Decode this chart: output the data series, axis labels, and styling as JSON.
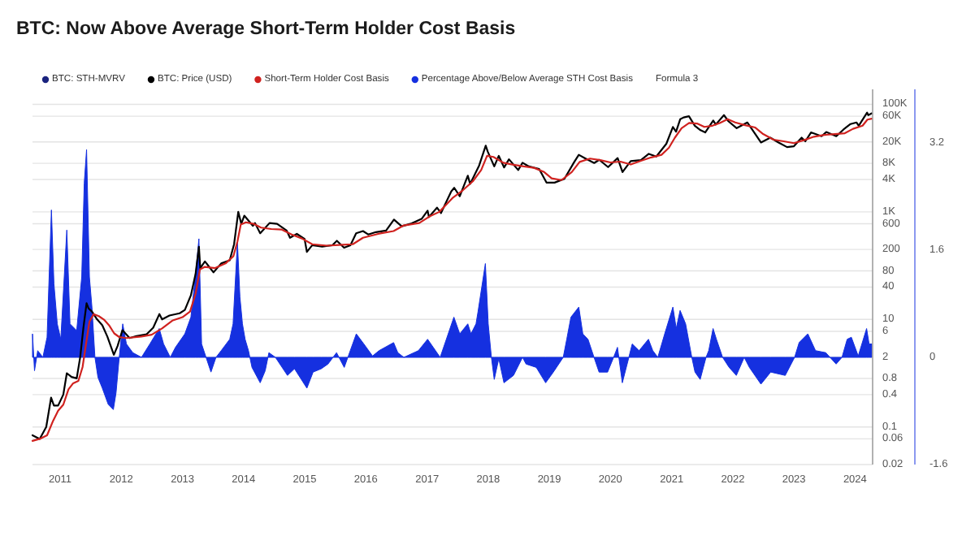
{
  "chart_data": {
    "type": "line",
    "title": "BTC: Now Above Average Short-Term Holder Cost Basis",
    "legend": "top left",
    "grid": "y",
    "log": "y",
    "xlim": [
      "2010-07-20",
      "2024-04-15"
    ],
    "xticks": [
      "2011",
      "2012",
      "2013",
      "2014",
      "2015",
      "2016",
      "2017",
      "2018",
      "2019",
      "2020",
      "2021",
      "2022",
      "2023",
      "2024"
    ],
    "ylim": [
      0.02,
      190000
    ],
    "yticks": [
      0.02,
      0.06,
      0.1,
      0.4,
      0.8,
      2,
      6,
      10,
      40,
      80,
      200,
      600,
      {
        "value": 1000,
        "label": "1K"
      },
      {
        "value": 4000,
        "label": "4K"
      },
      {
        "value": 8000,
        "label": "8K"
      },
      {
        "value": 20000,
        "label": "20K"
      },
      {
        "value": 60000,
        "label": "60K"
      },
      {
        "value": 100000,
        "label": "100K"
      }
    ],
    "y2lim": [
      -1.6,
      4.0
    ],
    "y2ticks": [
      -1.6,
      0,
      1.6,
      3.2
    ],
    "series": [
      {
        "name": "BTC: STH-MVRV",
        "color": "#1a237e"
      },
      {
        "name": "BTC: Price (USD)",
        "color": "#000000",
        "x": [
          "2010-07-20",
          "2010-09-01",
          "2010-10-10",
          "2010-11-08",
          "2010-11-25",
          "2010-12-20",
          "2011-01-20",
          "2011-02-10",
          "2011-03-10",
          "2011-04-10",
          "2011-05-01",
          "2011-05-20",
          "2011-06-08",
          "2011-06-20",
          "2011-07-10",
          "2011-08-10",
          "2011-09-10",
          "2011-10-10",
          "2011-11-18",
          "2011-12-10",
          "2012-01-08",
          "2012-02-20",
          "2012-04-01",
          "2012-06-01",
          "2012-07-10",
          "2012-08-16",
          "2012-09-01",
          "2012-10-15",
          "2012-12-15",
          "2013-01-15",
          "2013-02-20",
          "2013-03-20",
          "2013-04-09",
          "2013-04-17",
          "2013-05-15",
          "2013-07-05",
          "2013-08-20",
          "2013-10-10",
          "2013-11-05",
          "2013-11-30",
          "2013-12-18",
          "2014-01-05",
          "2014-02-25",
          "2014-03-10",
          "2014-04-10",
          "2014-06-05",
          "2014-07-20",
          "2014-09-15",
          "2014-10-05",
          "2014-11-15",
          "2014-12-31",
          "2015-01-14",
          "2015-02-15",
          "2015-04-15",
          "2015-06-15",
          "2015-07-12",
          "2015-08-24",
          "2015-10-01",
          "2015-11-04",
          "2015-12-15",
          "2016-01-15",
          "2016-03-01",
          "2016-05-01",
          "2016-06-17",
          "2016-08-02",
          "2016-10-01",
          "2016-12-01",
          "2017-01-04",
          "2017-01-12",
          "2017-03-01",
          "2017-03-25",
          "2017-05-25",
          "2017-06-12",
          "2017-07-15",
          "2017-09-01",
          "2017-09-15",
          "2017-11-08",
          "2017-12-17",
          "2017-12-30",
          "2018-02-06",
          "2018-03-05",
          "2018-04-06",
          "2018-05-05",
          "2018-06-29",
          "2018-07-25",
          "2018-09-01",
          "2018-11-01",
          "2018-12-15",
          "2019-02-01",
          "2019-04-01",
          "2019-05-30",
          "2019-06-26",
          "2019-08-01",
          "2019-09-26",
          "2019-10-26",
          "2019-12-18",
          "2020-02-13",
          "2020-03-13",
          "2020-05-01",
          "2020-07-01",
          "2020-08-17",
          "2020-10-01",
          "2020-11-30",
          "2021-01-08",
          "2021-01-27",
          "2021-02-21",
          "2021-03-13",
          "2021-04-14",
          "2021-05-19",
          "2021-06-22",
          "2021-07-20",
          "2021-09-06",
          "2021-09-21",
          "2021-11-09",
          "2021-12-04",
          "2022-01-24",
          "2022-03-29",
          "2022-05-12",
          "2022-06-18",
          "2022-08-13",
          "2022-10-01",
          "2022-11-21",
          "2023-01-01",
          "2023-02-16",
          "2023-03-10",
          "2023-04-13",
          "2023-06-15",
          "2023-07-13",
          "2023-09-11",
          "2023-10-24",
          "2023-12-05",
          "2024-01-10",
          "2024-01-23",
          "2024-03-13",
          "2024-03-20",
          "2024-04-10"
        ],
        "values": [
          0.07,
          0.06,
          0.1,
          0.35,
          0.25,
          0.25,
          0.4,
          1.0,
          0.85,
          0.8,
          2,
          7,
          20,
          16,
          14,
          10,
          7.8,
          4.8,
          2.2,
          3.2,
          6.3,
          4.5,
          4.9,
          5.3,
          7,
          12.6,
          10,
          11.8,
          13,
          15,
          28,
          70,
          224,
          90,
          120,
          75,
          110,
          126,
          250,
          1000,
          600,
          850,
          550,
          620,
          400,
          620,
          600,
          450,
          330,
          390,
          315,
          180,
          240,
          225,
          240,
          290,
          215,
          240,
          400,
          440,
          380,
          420,
          450,
          720,
          540,
          610,
          750,
          1050,
          800,
          1200,
          950,
          2400,
          2800,
          1950,
          4700,
          3300,
          7300,
          17000,
          13000,
          7000,
          11000,
          6700,
          9500,
          6000,
          8200,
          7000,
          6300,
          3500,
          3500,
          4100,
          8500,
          11500,
          10000,
          8100,
          9300,
          6800,
          10000,
          5500,
          8800,
          9200,
          12000,
          10700,
          18500,
          38000,
          31000,
          53000,
          57000,
          60000,
          40000,
          33000,
          30000,
          50000,
          42000,
          63000,
          49000,
          36000,
          46000,
          29000,
          19500,
          24000,
          19500,
          16000,
          16600,
          24000,
          20500,
          30000,
          25500,
          30500,
          25500,
          34000,
          43000,
          46000,
          40000,
          70000,
          63000,
          68000
        ]
      },
      {
        "name": "Short-Term Holder Cost Basis",
        "color": "#d0221f",
        "x": [
          "2010-07-20",
          "2010-09-01",
          "2010-10-15",
          "2010-11-20",
          "2010-12-20",
          "2011-01-20",
          "2011-02-20",
          "2011-03-20",
          "2011-04-20",
          "2011-05-15",
          "2011-06-10",
          "2011-06-25",
          "2011-07-20",
          "2011-08-20",
          "2011-09-20",
          "2011-10-20",
          "2011-11-20",
          "2011-12-20",
          "2012-02-01",
          "2012-05-01",
          "2012-07-01",
          "2012-09-01",
          "2012-11-01",
          "2013-01-01",
          "2013-02-15",
          "2013-03-20",
          "2013-04-15",
          "2013-05-15",
          "2013-07-15",
          "2013-09-15",
          "2013-11-01",
          "2013-11-25",
          "2013-12-15",
          "2014-01-15",
          "2014-03-01",
          "2014-04-15",
          "2014-06-15",
          "2014-08-15",
          "2014-10-15",
          "2014-12-15",
          "2015-02-15",
          "2015-05-15",
          "2015-08-15",
          "2015-10-15",
          "2015-12-15",
          "2016-03-15",
          "2016-06-15",
          "2016-08-15",
          "2016-11-15",
          "2017-01-15",
          "2017-03-15",
          "2017-06-01",
          "2017-08-01",
          "2017-10-01",
          "2017-11-20",
          "2017-12-25",
          "2018-02-01",
          "2018-04-01",
          "2018-06-01",
          "2018-08-01",
          "2018-10-01",
          "2018-12-01",
          "2019-01-15",
          "2019-03-15",
          "2019-05-15",
          "2019-07-01",
          "2019-09-01",
          "2019-11-01",
          "2020-01-01",
          "2020-03-01",
          "2020-05-01",
          "2020-07-01",
          "2020-09-01",
          "2020-11-01",
          "2020-12-15",
          "2021-01-20",
          "2021-03-01",
          "2021-04-15",
          "2021-06-01",
          "2021-07-15",
          "2021-09-01",
          "2021-10-15",
          "2021-12-01",
          "2022-01-15",
          "2022-03-15",
          "2022-05-15",
          "2022-07-01",
          "2022-09-01",
          "2022-11-01",
          "2023-01-01",
          "2023-03-01",
          "2023-05-01",
          "2023-07-01",
          "2023-09-01",
          "2023-11-01",
          "2023-12-20",
          "2024-02-15",
          "2024-03-15",
          "2024-04-10"
        ],
        "values": [
          0.055,
          0.06,
          0.07,
          0.13,
          0.2,
          0.26,
          0.5,
          0.65,
          0.72,
          1.3,
          4.5,
          9,
          12.5,
          11.5,
          9.9,
          7.8,
          5.5,
          4.7,
          4.5,
          4.8,
          5.2,
          6.8,
          9.5,
          11,
          14,
          30,
          85,
          95,
          90,
          110,
          150,
          280,
          580,
          640,
          600,
          510,
          480,
          470,
          380,
          320,
          250,
          235,
          245,
          250,
          330,
          390,
          440,
          560,
          620,
          820,
          1000,
          1800,
          2500,
          3700,
          6000,
          11000,
          10500,
          8200,
          7500,
          7000,
          6600,
          5500,
          4200,
          3900,
          5500,
          8500,
          9800,
          9200,
          8300,
          8600,
          7600,
          8900,
          10300,
          11500,
          15500,
          24000,
          36000,
          45000,
          44000,
          38000,
          40000,
          45000,
          53000,
          46000,
          41000,
          37000,
          28000,
          22000,
          20500,
          19000,
          21500,
          25000,
          27000,
          28000,
          29000,
          35000,
          40000,
          52000,
          54000
        ]
      },
      {
        "name": "Percentage Above/Below Average STH Cost Basis",
        "type": "area",
        "axis": "y2",
        "color": "#1530e0",
        "x": [
          "2010-07-20",
          "2010-08-01",
          "2010-08-20",
          "2010-09-20",
          "2010-10-15",
          "2010-11-10",
          "2010-11-25",
          "2010-12-15",
          "2011-01-05",
          "2011-02-10",
          "2011-03-01",
          "2011-04-10",
          "2011-05-10",
          "2011-05-25",
          "2011-06-08",
          "2011-06-25",
          "2011-07-10",
          "2011-07-28",
          "2011-08-15",
          "2011-09-10",
          "2011-10-15",
          "2011-11-15",
          "2011-12-01",
          "2011-12-20",
          "2012-01-10",
          "2012-02-01",
          "2012-03-10",
          "2012-05-01",
          "2012-06-20",
          "2012-08-15",
          "2012-09-10",
          "2012-10-20",
          "2012-11-20",
          "2013-01-15",
          "2013-02-20",
          "2013-03-20",
          "2013-04-09",
          "2013-04-25",
          "2013-06-20",
          "2013-07-20",
          "2013-08-20",
          "2013-10-10",
          "2013-10-30",
          "2013-11-25",
          "2013-12-10",
          "2013-12-25",
          "2014-01-10",
          "2014-01-30",
          "2014-02-20",
          "2014-04-10",
          "2014-05-10",
          "2014-06-01",
          "2014-07-10",
          "2014-09-20",
          "2014-11-01",
          "2015-01-14",
          "2015-02-20",
          "2015-04-10",
          "2015-05-20",
          "2015-07-10",
          "2015-08-25",
          "2015-11-05",
          "2015-12-20",
          "2016-02-10",
          "2016-03-20",
          "2016-06-15",
          "2016-07-10",
          "2016-08-15",
          "2016-11-10",
          "2017-01-04",
          "2017-03-20",
          "2017-06-10",
          "2017-07-15",
          "2017-09-01",
          "2017-09-20",
          "2017-10-20",
          "2017-11-01",
          "2017-12-15",
          "2018-01-01",
          "2018-01-20",
          "2018-02-06",
          "2018-03-05",
          "2018-04-05",
          "2018-06-01",
          "2018-07-25",
          "2018-08-15",
          "2018-10-15",
          "2018-12-10",
          "2019-01-25",
          "2019-03-25",
          "2019-04-15",
          "2019-05-10",
          "2019-06-26",
          "2019-07-20",
          "2019-08-20",
          "2019-09-25",
          "2019-10-25",
          "2019-12-15",
          "2020-01-20",
          "2020-02-12",
          "2020-03-12",
          "2020-04-15",
          "2020-05-10",
          "2020-06-20",
          "2020-08-15",
          "2020-09-10",
          "2020-10-10",
          "2020-11-20",
          "2021-01-08",
          "2021-01-28",
          "2021-02-20",
          "2021-03-25",
          "2021-05-01",
          "2021-05-20",
          "2021-06-20",
          "2021-07-25",
          "2021-08-10",
          "2021-09-05",
          "2021-09-25",
          "2021-11-01",
          "2021-12-10",
          "2022-01-22",
          "2022-03-10",
          "2022-04-10",
          "2022-06-18",
          "2022-08-15",
          "2022-11-10",
          "2023-01-05",
          "2023-02-01",
          "2023-03-25",
          "2023-05-10",
          "2023-07-10",
          "2023-09-10",
          "2023-10-15",
          "2023-11-15",
          "2023-12-10",
          "2024-01-20",
          "2024-03-10",
          "2024-03-25",
          "2024-04-10"
        ],
        "values": [
          0.35,
          -0.2,
          0.1,
          0.0,
          0.3,
          2.2,
          1.1,
          0.5,
          0.27,
          1.9,
          0.5,
          0.4,
          1.2,
          2.6,
          3.1,
          1.2,
          0.75,
          0.0,
          -0.3,
          -0.46,
          -0.7,
          -0.78,
          -0.53,
          0.0,
          0.5,
          0.2,
          0.07,
          0.0,
          0.2,
          0.43,
          0.2,
          0.0,
          0.15,
          0.35,
          0.6,
          1.24,
          1.77,
          0.2,
          -0.22,
          0.0,
          0.1,
          0.27,
          0.5,
          1.72,
          0.9,
          0.5,
          0.27,
          0.1,
          -0.15,
          -0.38,
          -0.2,
          0.07,
          0.0,
          -0.27,
          -0.17,
          -0.46,
          -0.22,
          -0.17,
          -0.1,
          0.07,
          -0.15,
          0.35,
          0.2,
          0.02,
          0.1,
          0.22,
          0.07,
          0.0,
          0.1,
          0.27,
          0.0,
          0.6,
          0.35,
          0.5,
          0.35,
          0.5,
          0.68,
          1.4,
          0.5,
          0.0,
          -0.33,
          -0.02,
          -0.38,
          -0.27,
          0.0,
          -0.1,
          -0.15,
          -0.38,
          -0.22,
          0.0,
          0.27,
          0.6,
          0.75,
          0.35,
          0.27,
          0.0,
          -0.22,
          -0.22,
          0.0,
          0.15,
          -0.38,
          -0.05,
          0.2,
          0.1,
          0.27,
          0.1,
          0.0,
          0.35,
          0.75,
          0.43,
          0.7,
          0.5,
          0.0,
          -0.22,
          -0.33,
          0.0,
          0.1,
          0.43,
          0.27,
          0.0,
          -0.15,
          -0.27,
          0.0,
          -0.15,
          -0.4,
          -0.22,
          -0.27,
          0.0,
          0.22,
          0.35,
          0.1,
          0.07,
          -0.1,
          0.0,
          0.27,
          0.3,
          0.02,
          0.43,
          0.2,
          0.2
        ]
      },
      {
        "name": "Formula 3"
      }
    ]
  }
}
